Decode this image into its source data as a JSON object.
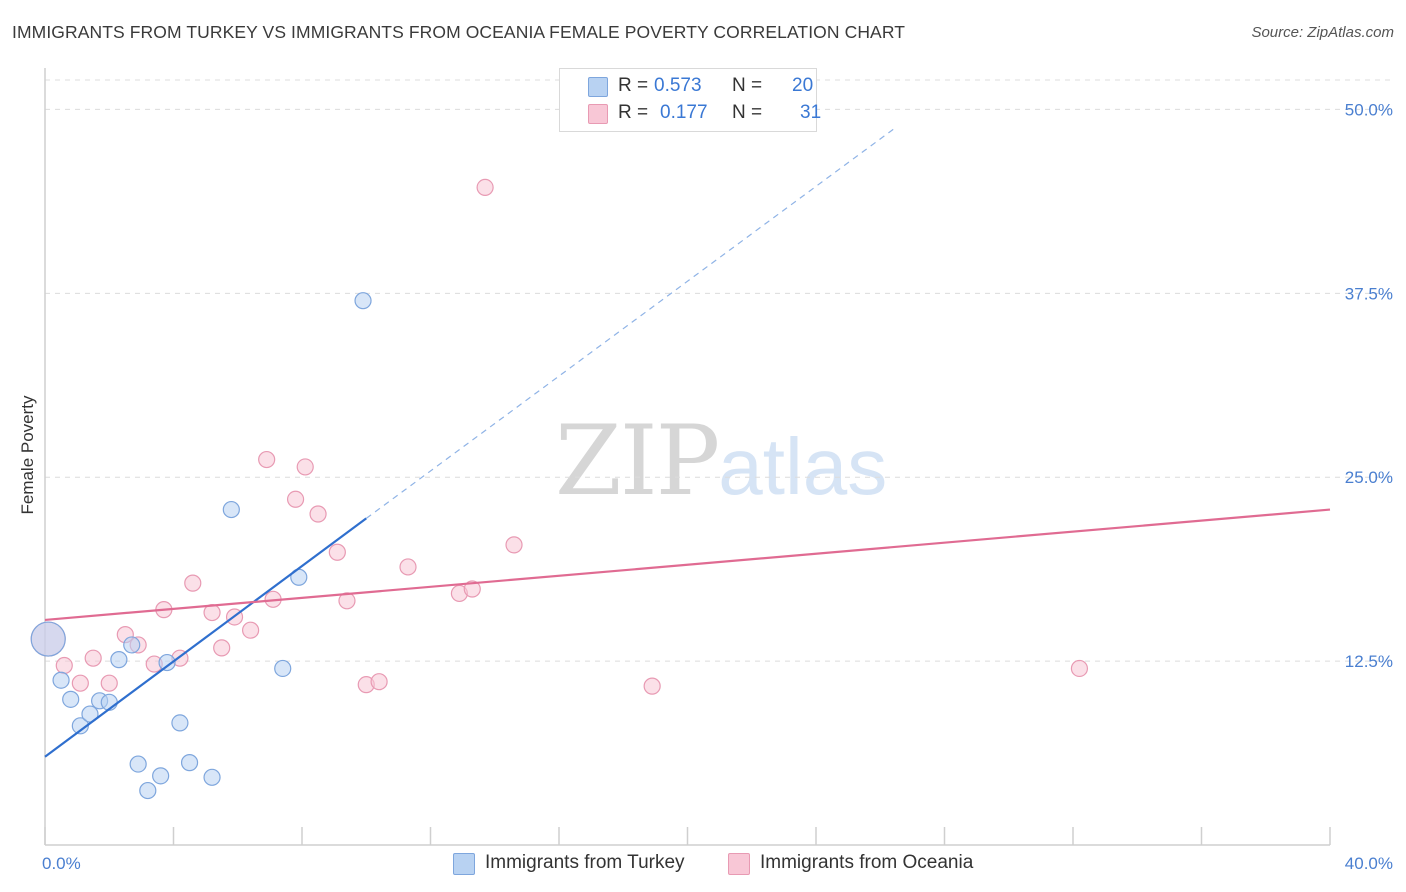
{
  "header": {
    "title": "IMMIGRANTS FROM TURKEY VS IMMIGRANTS FROM OCEANIA FEMALE POVERTY CORRELATION CHART",
    "source": "Source: ZipAtlas.com"
  },
  "watermark": {
    "zip": "ZIP",
    "atlas": "atlas"
  },
  "legend": {
    "rows": [
      {
        "r_label": "R =",
        "r_value": "0.573",
        "n_label": "N =",
        "n_value": "20",
        "color": "#b8d2f2",
        "border": "#7ea6dd"
      },
      {
        "r_label": "R =",
        "r_value": "0.177",
        "n_label": "N =",
        "n_value": "31",
        "color": "#f8c7d6",
        "border": "#e89ab3"
      }
    ]
  },
  "bottom_legend": [
    {
      "label": "Immigrants from Turkey",
      "color": "#b8d2f2",
      "border": "#7ea6dd"
    },
    {
      "label": "Immigrants from Oceania",
      "color": "#f8c7d6",
      "border": "#e89ab3"
    }
  ],
  "chart_data": {
    "type": "scatter",
    "title": "IMMIGRANTS FROM TURKEY VS IMMIGRANTS FROM OCEANIA FEMALE POVERTY CORRELATION CHART",
    "xlabel": "",
    "ylabel": "Female Poverty",
    "xlim": [
      0,
      40
    ],
    "ylim": [
      0,
      52
    ],
    "x_tick_labels": [
      "0.0%",
      "40.0%"
    ],
    "y_ticks": [
      12.5,
      25.0,
      37.5,
      50.0
    ],
    "y_tick_labels": [
      "12.5%",
      "25.0%",
      "37.5%",
      "50.0%"
    ],
    "series": [
      {
        "name": "Immigrants from Turkey",
        "color": "#7ea6dd",
        "fill": "#b8d2f2",
        "line_color": "#2f6fce",
        "trend": {
          "x0": 0,
          "y0": 6.0,
          "x1": 10.0,
          "y1": 22.2,
          "dash_to_x": 26.5,
          "dash_to_y": 48.8
        },
        "points": [
          {
            "x": 0.1,
            "y": 14.0,
            "big": true
          },
          {
            "x": 0.5,
            "y": 11.2
          },
          {
            "x": 0.8,
            "y": 9.9
          },
          {
            "x": 1.1,
            "y": 8.1
          },
          {
            "x": 1.4,
            "y": 8.9
          },
          {
            "x": 1.7,
            "y": 9.8
          },
          {
            "x": 2.0,
            "y": 9.7
          },
          {
            "x": 2.3,
            "y": 12.6
          },
          {
            "x": 2.7,
            "y": 13.6
          },
          {
            "x": 2.9,
            "y": 5.5
          },
          {
            "x": 3.2,
            "y": 3.7
          },
          {
            "x": 3.6,
            "y": 4.7
          },
          {
            "x": 3.8,
            "y": 12.4
          },
          {
            "x": 4.2,
            "y": 8.3
          },
          {
            "x": 4.5,
            "y": 5.6
          },
          {
            "x": 5.2,
            "y": 4.6
          },
          {
            "x": 5.8,
            "y": 22.8
          },
          {
            "x": 7.4,
            "y": 12.0
          },
          {
            "x": 7.9,
            "y": 18.2
          },
          {
            "x": 9.9,
            "y": 37.0
          }
        ]
      },
      {
        "name": "Immigrants from Oceania",
        "color": "#e89ab3",
        "fill": "#f8c7d6",
        "line_color": "#e06b92",
        "trend": {
          "x0": 0,
          "y0": 15.3,
          "x1": 40,
          "y1": 22.8
        },
        "points": [
          {
            "x": 0.1,
            "y": 14.0,
            "big": true
          },
          {
            "x": 0.6,
            "y": 12.2
          },
          {
            "x": 1.1,
            "y": 11.0
          },
          {
            "x": 1.5,
            "y": 12.7
          },
          {
            "x": 2.0,
            "y": 11.0
          },
          {
            "x": 2.5,
            "y": 14.3
          },
          {
            "x": 2.9,
            "y": 13.6
          },
          {
            "x": 3.4,
            "y": 12.3
          },
          {
            "x": 3.7,
            "y": 16.0
          },
          {
            "x": 4.2,
            "y": 12.7
          },
          {
            "x": 4.6,
            "y": 17.8
          },
          {
            "x": 5.2,
            "y": 15.8
          },
          {
            "x": 5.5,
            "y": 13.4
          },
          {
            "x": 5.9,
            "y": 15.5
          },
          {
            "x": 6.4,
            "y": 14.6
          },
          {
            "x": 6.9,
            "y": 26.2
          },
          {
            "x": 7.1,
            "y": 16.7
          },
          {
            "x": 7.8,
            "y": 23.5
          },
          {
            "x": 8.1,
            "y": 25.7
          },
          {
            "x": 8.5,
            "y": 22.5
          },
          {
            "x": 9.1,
            "y": 19.9
          },
          {
            "x": 9.4,
            "y": 16.6
          },
          {
            "x": 10.0,
            "y": 10.9
          },
          {
            "x": 10.4,
            "y": 11.1
          },
          {
            "x": 11.3,
            "y": 18.9
          },
          {
            "x": 12.9,
            "y": 17.1
          },
          {
            "x": 13.3,
            "y": 17.4
          },
          {
            "x": 13.7,
            "y": 44.7
          },
          {
            "x": 14.6,
            "y": 20.4
          },
          {
            "x": 18.9,
            "y": 10.8
          },
          {
            "x": 32.2,
            "y": 12.0
          }
        ]
      }
    ]
  }
}
